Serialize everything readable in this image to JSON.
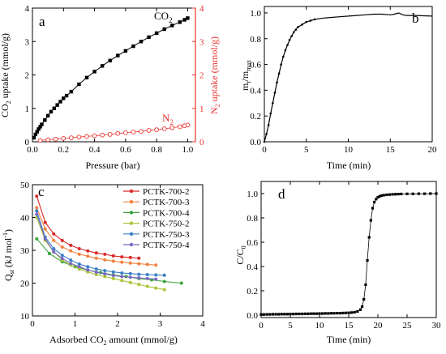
{
  "chart_data": [
    {
      "panel": "a",
      "type": "scatter",
      "xlabel": "Pressure (bar)",
      "ylabel": "CO2 uptake (mmol/g)",
      "ylabel_right": "N2 uptake (mmol/g)",
      "xlim": [
        0,
        1.05
      ],
      "ylim": [
        0,
        4
      ],
      "ylim_right": [
        0,
        4
      ],
      "x_ticks": [
        "0.0",
        "0.2",
        "0.4",
        "0.6",
        "0.8",
        "1.0"
      ],
      "y_ticks": [
        "0",
        "1",
        "2",
        "3",
        "4"
      ],
      "y_ticks_right": [
        "0",
        "1",
        "2",
        "3",
        "4"
      ],
      "colors": {
        "axis": "#000000",
        "co2": "#000000",
        "n2": "#e8322d"
      },
      "series": [
        {
          "name": "CO2",
          "axis": "left",
          "marker": "filled-square",
          "x": [
            0.01,
            0.02,
            0.03,
            0.04,
            0.05,
            0.06,
            0.08,
            0.1,
            0.12,
            0.14,
            0.16,
            0.18,
            0.2,
            0.22,
            0.25,
            0.3,
            0.35,
            0.4,
            0.45,
            0.5,
            0.55,
            0.6,
            0.65,
            0.7,
            0.75,
            0.8,
            0.85,
            0.9,
            0.95,
            0.98,
            1.0
          ],
          "values": [
            0.12,
            0.22,
            0.3,
            0.38,
            0.45,
            0.52,
            0.65,
            0.78,
            0.9,
            1.0,
            1.1,
            1.2,
            1.3,
            1.38,
            1.5,
            1.72,
            1.92,
            2.1,
            2.27,
            2.43,
            2.58,
            2.72,
            2.86,
            3.0,
            3.13,
            3.25,
            3.37,
            3.48,
            3.58,
            3.65,
            3.7
          ]
        },
        {
          "name": "N2",
          "axis": "right",
          "marker": "open-circle",
          "x": [
            0.05,
            0.1,
            0.15,
            0.2,
            0.25,
            0.3,
            0.35,
            0.4,
            0.45,
            0.5,
            0.55,
            0.6,
            0.65,
            0.7,
            0.75,
            0.8,
            0.85,
            0.9,
            0.95,
            0.98,
            1.0
          ],
          "values": [
            0.04,
            0.06,
            0.08,
            0.1,
            0.12,
            0.14,
            0.16,
            0.18,
            0.2,
            0.22,
            0.25,
            0.27,
            0.29,
            0.31,
            0.34,
            0.36,
            0.39,
            0.42,
            0.45,
            0.48,
            0.5
          ]
        }
      ]
    },
    {
      "panel": "b",
      "type": "line",
      "xlabel": "Time (min)",
      "ylabel": "mt/mmax",
      "xlim": [
        0,
        20
      ],
      "ylim": [
        0,
        1.05
      ],
      "x_ticks": [
        "0",
        "5",
        "10",
        "15",
        "20"
      ],
      "y_ticks": [
        "0.0",
        "0.2",
        "0.4",
        "0.6",
        "0.8",
        "1.0"
      ],
      "colors": {
        "series": "#000000"
      },
      "series": [
        {
          "x": [
            0,
            0.25,
            0.5,
            0.75,
            1.0,
            1.25,
            1.5,
            1.75,
            2.0,
            2.25,
            2.5,
            2.75,
            3.0,
            3.25,
            3.5,
            3.75,
            4.0,
            4.5,
            5.0,
            5.5,
            6.0,
            7.0,
            8.0,
            9.0,
            10.0,
            11.0,
            12.0,
            13.0,
            14.0,
            15.0,
            15.5,
            16.0,
            16.5,
            17.0,
            18.0,
            19.0,
            20.0
          ],
          "values": [
            0,
            0.06,
            0.13,
            0.22,
            0.3,
            0.38,
            0.46,
            0.53,
            0.6,
            0.66,
            0.71,
            0.75,
            0.79,
            0.82,
            0.85,
            0.87,
            0.89,
            0.91,
            0.93,
            0.94,
            0.95,
            0.96,
            0.965,
            0.97,
            0.975,
            0.98,
            0.985,
            0.99,
            0.99,
            0.985,
            0.99,
            1.0,
            0.985,
            0.98,
            0.98,
            0.978,
            0.975
          ]
        }
      ]
    },
    {
      "panel": "c",
      "type": "line",
      "xlabel": "Adsorbed CO2 amount (mmol/g)",
      "ylabel": "Qst (kJ mol-1)",
      "xlim": [
        0,
        4
      ],
      "ylim": [
        10,
        50
      ],
      "x_ticks": [
        "0",
        "1",
        "2",
        "3",
        "4"
      ],
      "y_ticks": [
        "10",
        "20",
        "30",
        "40",
        "50"
      ],
      "legend_position": "top-right",
      "series": [
        {
          "name": "PCTK-700-2",
          "color": "#d9292a",
          "x": [
            0.1,
            0.3,
            0.5,
            0.7,
            0.9,
            1.1,
            1.3,
            1.5,
            1.7,
            1.9,
            2.1,
            2.3,
            2.5
          ],
          "values": [
            46.5,
            38.5,
            35.0,
            33.0,
            31.5,
            30.5,
            29.8,
            29.2,
            28.8,
            28.3,
            28.0,
            27.8,
            27.6
          ]
        },
        {
          "name": "PCTK-700-3",
          "color": "#f0813f",
          "x": [
            0.1,
            0.3,
            0.5,
            0.7,
            0.9,
            1.1,
            1.3,
            1.5,
            1.7,
            1.9,
            2.1,
            2.3,
            2.5,
            2.7,
            2.9
          ],
          "values": [
            43.0,
            36.5,
            33.0,
            31.0,
            29.8,
            28.8,
            28.2,
            27.6,
            27.1,
            26.7,
            26.4,
            26.1,
            25.9,
            25.7,
            25.5
          ]
        },
        {
          "name": "PCTK-700-4",
          "color": "#3aa43a",
          "x": [
            0.1,
            0.4,
            0.7,
            1.0,
            1.3,
            1.6,
            1.9,
            2.2,
            2.5,
            2.8,
            3.1,
            3.5
          ],
          "values": [
            33.5,
            29.0,
            26.5,
            25.0,
            24.0,
            23.2,
            22.5,
            22.0,
            21.4,
            21.0,
            20.5,
            20.0
          ]
        },
        {
          "name": "PCTK-750-2",
          "color": "#a9c53a",
          "x": [
            0.1,
            0.3,
            0.5,
            0.7,
            0.9,
            1.1,
            1.3,
            1.5,
            1.7,
            1.9,
            2.1,
            2.3,
            2.5,
            2.7,
            2.9,
            3.1
          ],
          "values": [
            40.0,
            33.0,
            29.5,
            27.0,
            25.5,
            24.3,
            23.4,
            22.6,
            22.0,
            21.4,
            20.8,
            20.2,
            19.6,
            19.0,
            18.5,
            18.0
          ]
        },
        {
          "name": "PCTK-750-3",
          "color": "#3a7fc4",
          "x": [
            0.1,
            0.3,
            0.5,
            0.7,
            0.9,
            1.1,
            1.3,
            1.5,
            1.7,
            1.9,
            2.1,
            2.3,
            2.5,
            2.7,
            2.9,
            3.1
          ],
          "values": [
            42.0,
            34.0,
            30.5,
            28.5,
            27.0,
            25.8,
            25.0,
            24.3,
            23.8,
            23.4,
            23.1,
            22.9,
            22.7,
            22.6,
            22.5,
            22.4
          ]
        },
        {
          "name": "PCTK-750-4",
          "color": "#7b68c4",
          "x": [
            0.1,
            0.3,
            0.5,
            0.7,
            0.9,
            1.1,
            1.3,
            1.5,
            1.7,
            1.9,
            2.1,
            2.3,
            2.5,
            2.7,
            2.9
          ],
          "values": [
            41.0,
            33.5,
            29.5,
            27.5,
            26.0,
            25.0,
            24.0,
            23.3,
            22.8,
            22.3,
            22.0,
            21.8,
            21.6,
            21.4,
            21.2
          ]
        }
      ]
    },
    {
      "panel": "d",
      "type": "line",
      "xlabel": "Time (min)",
      "ylabel": "C/C0",
      "xlim": [
        0,
        30
      ],
      "ylim": [
        -0.02,
        1.1
      ],
      "x_ticks": [
        "0",
        "5",
        "10",
        "15",
        "20",
        "25",
        "30"
      ],
      "y_ticks": [
        "0.0",
        "0.2",
        "0.4",
        "0.6",
        "0.8",
        "1.0"
      ],
      "colors": {
        "series": "#000000"
      },
      "series": [
        {
          "x": [
            0,
            0.5,
            1,
            1.5,
            2,
            2.5,
            3,
            3.5,
            4,
            4.5,
            5,
            5.5,
            6,
            6.5,
            7,
            7.5,
            8,
            8.5,
            9,
            9.5,
            10,
            10.5,
            11,
            11.5,
            12,
            12.5,
            13,
            13.5,
            14,
            14.5,
            15,
            15.5,
            16,
            16.5,
            17,
            17.3,
            17.6,
            17.9,
            18.2,
            18.5,
            18.8,
            19.1,
            19.4,
            19.7,
            20,
            20.3,
            20.6,
            21,
            21.5,
            22,
            22.5,
            23,
            23.5,
            24,
            25,
            26,
            27,
            28,
            29,
            30
          ],
          "values": [
            0.005,
            0.005,
            0.006,
            0.006,
            0.007,
            0.007,
            0.007,
            0.008,
            0.008,
            0.008,
            0.009,
            0.009,
            0.01,
            0.01,
            0.01,
            0.011,
            0.011,
            0.012,
            0.012,
            0.012,
            0.013,
            0.013,
            0.014,
            0.014,
            0.015,
            0.015,
            0.016,
            0.016,
            0.017,
            0.018,
            0.019,
            0.021,
            0.024,
            0.03,
            0.045,
            0.07,
            0.13,
            0.25,
            0.45,
            0.64,
            0.78,
            0.88,
            0.93,
            0.955,
            0.97,
            0.978,
            0.983,
            0.987,
            0.99,
            0.992,
            0.994,
            0.995,
            0.996,
            0.997,
            0.998,
            0.998,
            0.999,
            0.999,
            1.0,
            1.0
          ]
        }
      ]
    }
  ],
  "labels": {
    "a": {
      "panel": "a",
      "ylabel_pre": "CO",
      "ylabel_sub": "2",
      "ylabel_post": " uptake (mmol/g)",
      "ylabel_right_pre": "N",
      "ylabel_right_sub": "2",
      "ylabel_right_post": " uptake (mmol/g)",
      "xlabel": "Pressure (bar)",
      "co2_pre": "CO",
      "co2_sub": "2",
      "n2_pre": "N",
      "n2_sub": "2"
    },
    "b": {
      "panel": "b",
      "ylabel_m1": "m",
      "ylabel_t": "t",
      "ylabel_slash": "/m",
      "ylabel_max": "max",
      "xlabel": "Time (min)"
    },
    "c": {
      "panel": "c",
      "ylabel_q": "Q",
      "ylabel_st": "st",
      "ylabel_unit": " (kJ mol",
      "ylabel_exp": "-1",
      "ylabel_close": ")",
      "xlabel_pre": "Adsorbed CO",
      "xlabel_sub": "2",
      "xlabel_post": " amount (mmol/g)"
    },
    "d": {
      "panel": "d",
      "ylabel_c": "C/C",
      "ylabel_sub": "0",
      "xlabel": "Time (min)"
    }
  }
}
